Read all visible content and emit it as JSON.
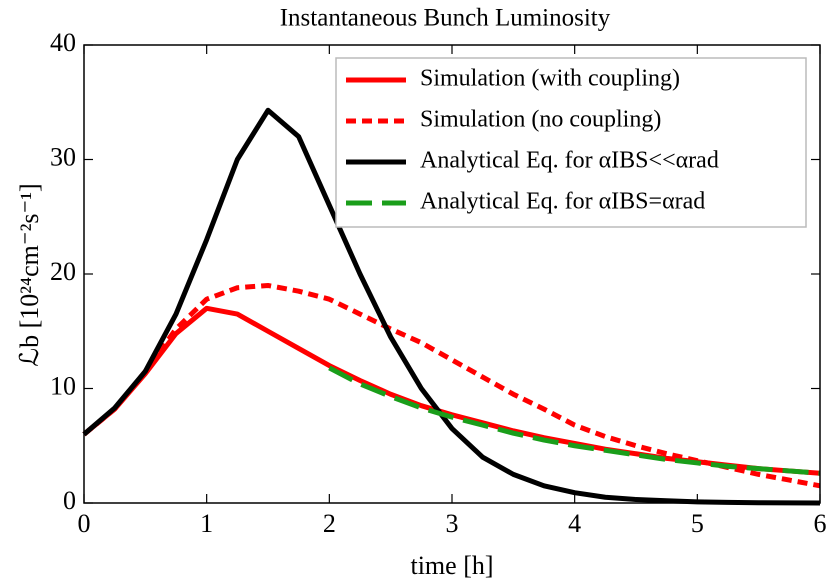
{
  "chart_data": {
    "type": "line",
    "title": "Instantaneous Bunch Luminosity",
    "xlabel": "time [h]",
    "ylabel": "ℒb [10²⁴cm⁻²s⁻¹]",
    "x": [
      0,
      0.25,
      0.5,
      0.75,
      1,
      1.25,
      1.5,
      1.75,
      2,
      2.25,
      2.5,
      2.75,
      3,
      3.25,
      3.5,
      3.75,
      4,
      4.25,
      4.5,
      4.75,
      5,
      5.25,
      5.5,
      5.75,
      6
    ],
    "series": [
      {
        "name": "Simulation (with coupling)",
        "color": "#ff0000",
        "dash": "solid",
        "values": [
          6,
          8.2,
          11.3,
          14.8,
          17,
          16.5,
          15,
          13.5,
          12,
          10.7,
          9.5,
          8.5,
          7.7,
          7,
          6.3,
          5.7,
          5.2,
          4.7,
          4.3,
          3.9,
          3.6,
          3.3,
          3.0,
          2.8,
          2.6
        ]
      },
      {
        "name": "Simulation (no coupling)",
        "color": "#ff0000",
        "dash": "short",
        "values": [
          6,
          8.2,
          11.5,
          15.2,
          17.8,
          18.8,
          19,
          18.5,
          17.8,
          16.5,
          15.2,
          14,
          12.5,
          11,
          9.5,
          8.2,
          6.8,
          5.8,
          5,
          4.3,
          3.7,
          3.1,
          2.5,
          2,
          1.5
        ]
      },
      {
        "name": "Analytical Eq. for αIBS<<αrad",
        "color": "#000000",
        "dash": "solid",
        "values": [
          6,
          8.3,
          11.5,
          16.5,
          23,
          30,
          34.3,
          32,
          26,
          20,
          14.5,
          10,
          6.5,
          4,
          2.5,
          1.5,
          0.9,
          0.5,
          0.3,
          0.2,
          0.1,
          0.05,
          0.02,
          0.01,
          0
        ]
      },
      {
        "name": "Analytical Eq. for αIBS=αrad",
        "color": "#1a9e1a",
        "dash": "long",
        "values": [
          null,
          null,
          null,
          null,
          null,
          null,
          null,
          null,
          11.8,
          10.4,
          9.3,
          8.3,
          7.5,
          6.8,
          6.1,
          5.5,
          5.0,
          4.6,
          4.2,
          3.8,
          3.5,
          3.2,
          3.0,
          2.8,
          2.6
        ]
      }
    ],
    "xlim": [
      0,
      6
    ],
    "xticks": [
      0,
      1,
      2,
      3,
      4,
      5,
      6
    ],
    "ylim": [
      0,
      40
    ],
    "yticks": [
      0,
      10,
      20,
      30,
      40
    ],
    "legend": "top-right"
  }
}
